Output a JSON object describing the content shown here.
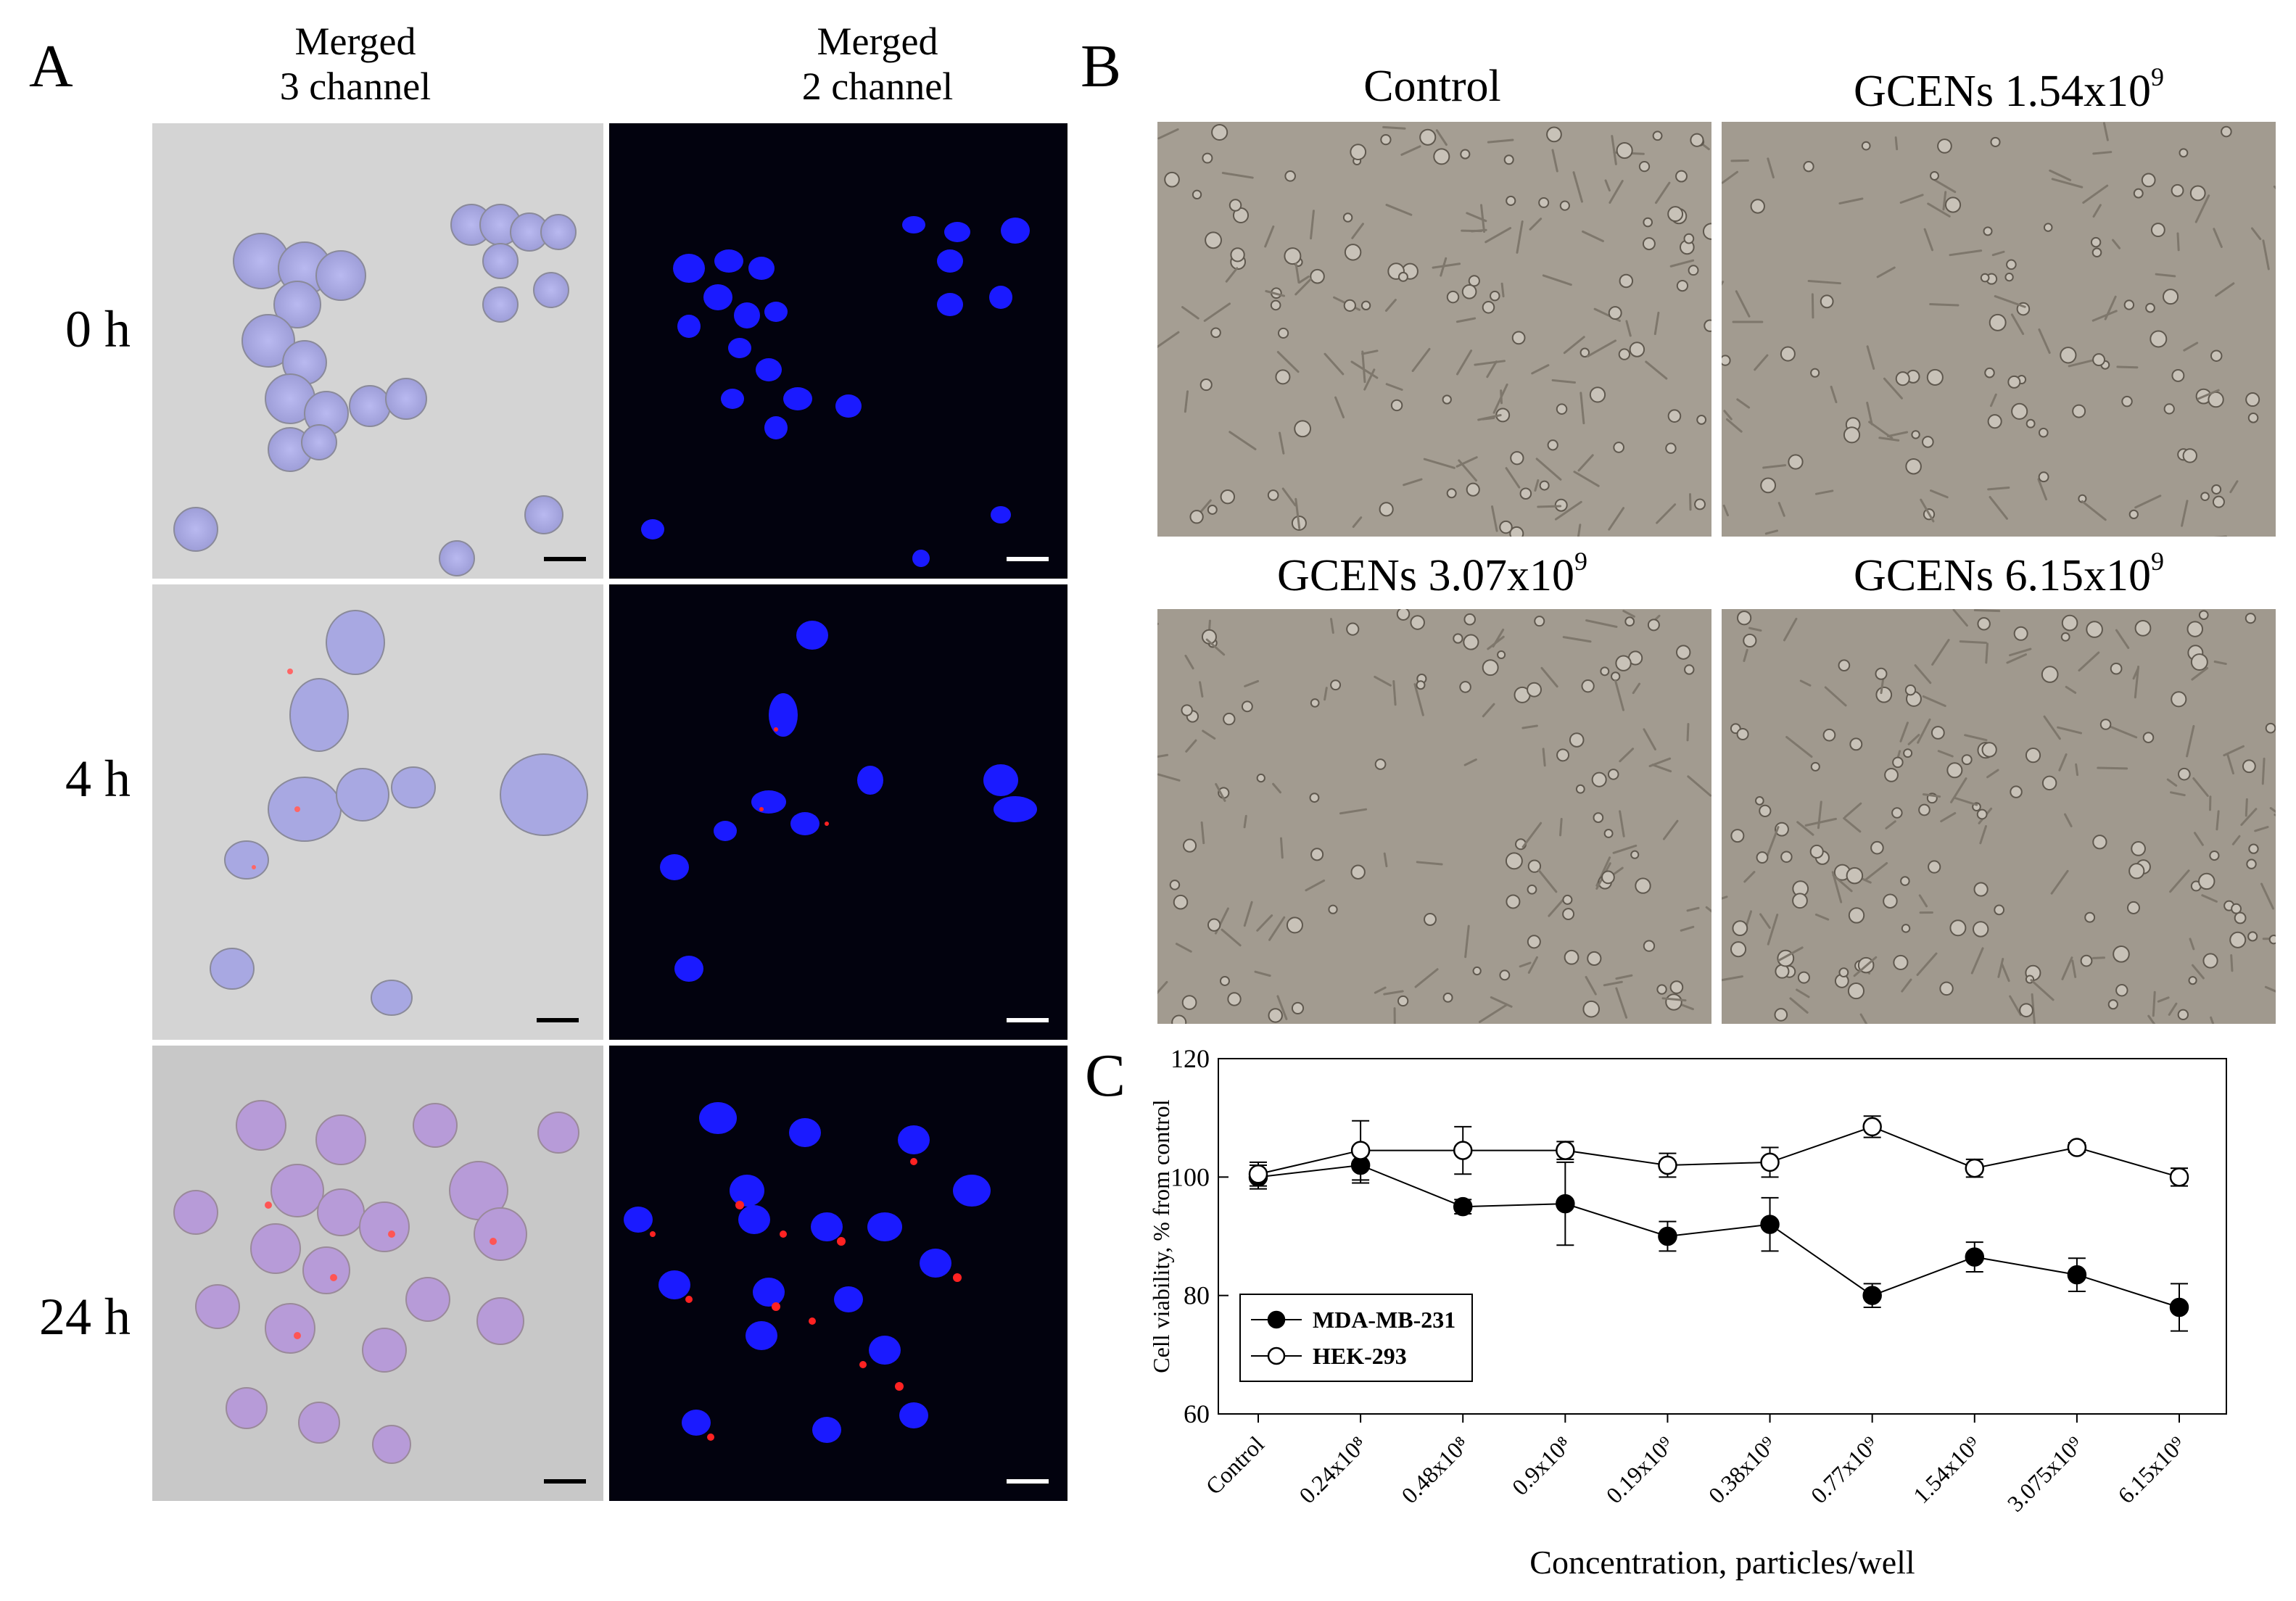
{
  "panel_labels": {
    "a": "A",
    "b": "B",
    "c": "C"
  },
  "panel_a": {
    "column_headers": [
      {
        "line1": "Merged",
        "line2": "3 channel"
      },
      {
        "line1": "Merged",
        "line2": "2 channel"
      }
    ],
    "row_labels": [
      "0 h",
      "4 h",
      "24 h"
    ]
  },
  "panel_b": {
    "images": [
      {
        "title_base": "Control",
        "title_exp": ""
      },
      {
        "title_base": "GCENs 1.54x10",
        "title_exp": "9"
      },
      {
        "title_base": "GCENs 3.07x10",
        "title_exp": "9"
      },
      {
        "title_base": "GCENs 6.15x10",
        "title_exp": "9"
      }
    ]
  },
  "colors": {
    "brightfield": "#d4d4d4",
    "fluorescence_bg": "#02020e",
    "nucleus": "#1a1aff",
    "lysosome_red": "#ff2222",
    "phase_contrast": "#a59e93"
  },
  "chart_data": {
    "type": "line",
    "xlabel": "Concentration, particles/well",
    "ylabel": "Cell viability, % from control",
    "categories": [
      "Control",
      "0.24x10⁸",
      "0.48x10⁸",
      "0.9x10⁸",
      "0.19x10⁹",
      "0.38x10⁹",
      "0.77x10⁹",
      "1.54x10⁹",
      "3.075x10⁹",
      "6.15x10⁹"
    ],
    "ylim": [
      60,
      120
    ],
    "yticks": [
      60,
      80,
      100,
      120
    ],
    "series": [
      {
        "name": "MDA-MB-231",
        "marker": "filled-circle",
        "values": [
          100,
          102,
          95,
          95.5,
          90,
          92,
          80,
          86.5,
          83.5,
          78
        ],
        "errors": [
          2,
          3,
          1.2,
          7,
          2.5,
          4.5,
          2,
          2.5,
          2.8,
          4
        ]
      },
      {
        "name": "HEK-293",
        "marker": "open-circle",
        "values": [
          100.5,
          104.5,
          104.5,
          104.5,
          102,
          102.5,
          108.5,
          101.5,
          105,
          100
        ],
        "errors": [
          2,
          5,
          4,
          1.5,
          2,
          2.5,
          1.8,
          1.5,
          0.8,
          1.5
        ]
      }
    ],
    "legend_position": "bottom-left",
    "grid": false
  }
}
